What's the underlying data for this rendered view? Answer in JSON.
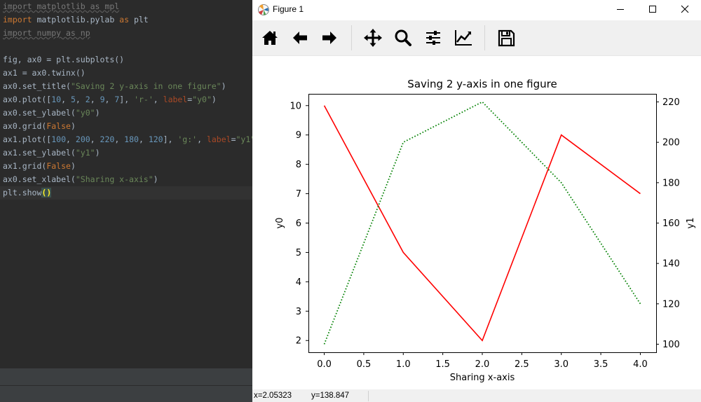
{
  "editor": {
    "lines": [
      [
        {
          "t": "import matplotlib as mpl",
          "c": "dim"
        }
      ],
      [
        {
          "t": "import",
          "c": "kw"
        },
        {
          "t": " matplotlib.pylab "
        },
        {
          "t": "as",
          "c": "kw"
        },
        {
          "t": " plt"
        }
      ],
      [
        {
          "t": "import numpy as np",
          "c": "dim"
        }
      ],
      [
        {
          "t": ""
        }
      ],
      [
        {
          "t": "fig, ax0 = plt.subplots()"
        }
      ],
      [
        {
          "t": "ax1 = ax0.twinx()"
        }
      ],
      [
        {
          "t": "ax0.set_title("
        },
        {
          "t": "\"Saving 2 y-axis in one figure\"",
          "c": "str"
        },
        {
          "t": ")"
        }
      ],
      [
        {
          "t": "ax0.plot(["
        },
        {
          "t": "10",
          "c": "num"
        },
        {
          "t": ", "
        },
        {
          "t": "5",
          "c": "num"
        },
        {
          "t": ", "
        },
        {
          "t": "2",
          "c": "num"
        },
        {
          "t": ", "
        },
        {
          "t": "9",
          "c": "num"
        },
        {
          "t": ", "
        },
        {
          "t": "7",
          "c": "num"
        },
        {
          "t": "], "
        },
        {
          "t": "'r-'",
          "c": "str"
        },
        {
          "t": ", "
        },
        {
          "t": "label",
          "c": "param"
        },
        {
          "t": "="
        },
        {
          "t": "\"y0\"",
          "c": "str"
        },
        {
          "t": ")"
        }
      ],
      [
        {
          "t": "ax0.set_ylabel("
        },
        {
          "t": "\"y0\"",
          "c": "str"
        },
        {
          "t": ")"
        }
      ],
      [
        {
          "t": "ax0.grid("
        },
        {
          "t": "False",
          "c": "kw"
        },
        {
          "t": ")"
        }
      ],
      [
        {
          "t": "ax1.plot(["
        },
        {
          "t": "100",
          "c": "num"
        },
        {
          "t": ", "
        },
        {
          "t": "200",
          "c": "num"
        },
        {
          "t": ", "
        },
        {
          "t": "220",
          "c": "num"
        },
        {
          "t": ", "
        },
        {
          "t": "180",
          "c": "num"
        },
        {
          "t": ", "
        },
        {
          "t": "120",
          "c": "num"
        },
        {
          "t": "], "
        },
        {
          "t": "'g:'",
          "c": "str"
        },
        {
          "t": ", "
        },
        {
          "t": "label",
          "c": "param"
        },
        {
          "t": "="
        },
        {
          "t": "\"y1\"",
          "c": "str"
        },
        {
          "t": ")"
        }
      ],
      [
        {
          "t": "ax1.set_ylabel("
        },
        {
          "t": "\"y1\"",
          "c": "str"
        },
        {
          "t": ")"
        }
      ],
      [
        {
          "t": "ax1.grid("
        },
        {
          "t": "False",
          "c": "kw"
        },
        {
          "t": ")"
        }
      ],
      [
        {
          "t": "ax0.set_xlabel("
        },
        {
          "t": "\"Sharing x-axis\"",
          "c": "str"
        },
        {
          "t": ")"
        }
      ],
      [
        {
          "t": "plt.show"
        },
        {
          "t": "()",
          "c": "paren"
        }
      ]
    ]
  },
  "window": {
    "title": "Figure 1",
    "controls": [
      "minimize-icon",
      "maximize-icon",
      "close-icon"
    ]
  },
  "toolbar": {
    "icons": [
      "home-icon",
      "back-arrow-icon",
      "forward-arrow-icon",
      "pan-icon",
      "zoom-icon",
      "subplots-config-icon",
      "edit-axis-icon",
      "save-icon"
    ]
  },
  "status": {
    "x": "x=2.05323",
    "y": "y=138.847"
  },
  "colors": {
    "series_y0": "#ff0000",
    "series_y1": "#008000"
  },
  "chart_data": {
    "type": "line",
    "title": "Saving 2 y-axis in one figure",
    "xlabel": "Sharing x-axis",
    "ylabel": "y0",
    "ylabel_right": "y1",
    "x": [
      0,
      1,
      2,
      3,
      4
    ],
    "xlim": [
      -0.2,
      4.2
    ],
    "xticks": [
      "0.0",
      "0.5",
      "1.0",
      "1.5",
      "2.0",
      "2.5",
      "3.0",
      "3.5",
      "4.0"
    ],
    "xtick_values": [
      0,
      0.5,
      1,
      1.5,
      2,
      2.5,
      3,
      3.5,
      4
    ],
    "ylim": [
      1.6,
      10.4
    ],
    "yticks": [
      2,
      3,
      4,
      5,
      6,
      7,
      8,
      9,
      10
    ],
    "ylim_right": [
      96,
      224
    ],
    "yticks_right": [
      100,
      120,
      140,
      160,
      180,
      200,
      220
    ],
    "grid": false,
    "series": [
      {
        "axis": "left",
        "style": "solid",
        "color": "#ff0000",
        "values": [
          10,
          5,
          2,
          9,
          7
        ]
      },
      {
        "axis": "right",
        "style": "dotted",
        "color": "#008000",
        "values": [
          100,
          200,
          220,
          180,
          120
        ]
      }
    ]
  }
}
